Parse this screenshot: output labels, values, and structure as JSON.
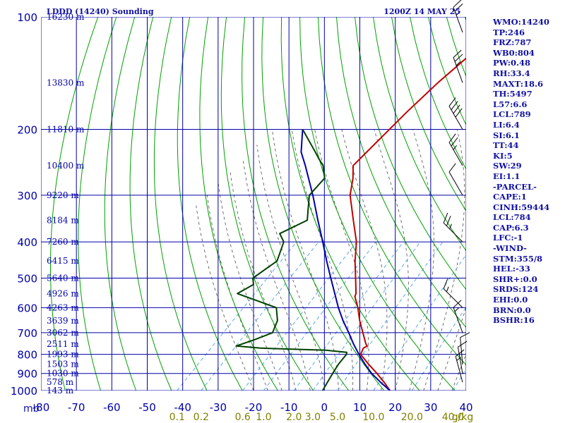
{
  "chart_data": {
    "type": "line",
    "chart_kind": "skew-T log-P sounding",
    "title": "LDDD (14240) Sounding",
    "time_label": "1200Z 14 MAY 25",
    "y_axis": {
      "scale": "log",
      "units_label": "mb",
      "range": [
        1000,
        100
      ],
      "ticks": [
        100,
        200,
        300,
        400,
        500,
        600,
        700,
        800,
        900,
        1000
      ]
    },
    "x_axis": {
      "units": "°C",
      "range": [
        -80,
        40
      ],
      "ticks": [
        -80,
        -70,
        -60,
        -50,
        -40,
        -30,
        -20,
        -10,
        0,
        10,
        20,
        30,
        40
      ],
      "tick_labels": [
        "-80",
        "-70",
        "-60",
        "-50",
        "-40",
        "-30",
        "-20",
        "-10",
        "0",
        "10",
        "20",
        "30",
        "40"
      ]
    },
    "mixing_ratio_labels": {
      "values": [
        "0.1",
        "0.2",
        "0.6",
        "1.0",
        "2.0",
        "3.0",
        "5.0",
        "10.0",
        "20.0",
        "40.0"
      ],
      "unit": "g/kg"
    },
    "height_labels": [
      {
        "p": 100,
        "label": "16230 m"
      },
      {
        "p": 150,
        "label": "13830 m"
      },
      {
        "p": 200,
        "label": "11810 m"
      },
      {
        "p": 250,
        "label": "10400 m"
      },
      {
        "p": 300,
        "label": "9220 m"
      },
      {
        "p": 350,
        "label": "8184 m"
      },
      {
        "p": 400,
        "label": "7260 m"
      },
      {
        "p": 450,
        "label": "6415 m"
      },
      {
        "p": 500,
        "label": "5640 m"
      },
      {
        "p": 550,
        "label": "4926 m"
      },
      {
        "p": 600,
        "label": "4263 m"
      },
      {
        "p": 650,
        "label": "3639 m"
      },
      {
        "p": 700,
        "label": "3062 m"
      },
      {
        "p": 750,
        "label": "2511 m"
      },
      {
        "p": 800,
        "label": "1993 m"
      },
      {
        "p": 850,
        "label": "1503 m"
      },
      {
        "p": 900,
        "label": "1030 m"
      },
      {
        "p": 950,
        "label": "578 m"
      },
      {
        "p": 1000,
        "label": "143 m"
      }
    ],
    "series": [
      {
        "color": "#c00000",
        "points": [
          [
            1000,
            18.5
          ],
          [
            950,
            14.5
          ],
          [
            900,
            10
          ],
          [
            850,
            5
          ],
          [
            800,
            0
          ],
          [
            770,
            -1
          ],
          [
            760,
            -0.5
          ],
          [
            750,
            -1.5
          ],
          [
            700,
            -5.5
          ],
          [
            650,
            -9.8
          ],
          [
            600,
            -14
          ],
          [
            560,
            -18
          ],
          [
            550,
            -18.5
          ],
          [
            500,
            -23
          ],
          [
            450,
            -28
          ],
          [
            400,
            -33
          ],
          [
            350,
            -40
          ],
          [
            300,
            -48
          ],
          [
            270,
            -52
          ],
          [
            250,
            -55.5
          ],
          [
            240,
            -55.5
          ],
          [
            210,
            -55.5
          ],
          [
            180,
            -55.5
          ],
          [
            150,
            -55
          ],
          [
            130,
            -54
          ],
          [
            117,
            -53.5
          ],
          [
            109,
            -52.5
          ],
          [
            100,
            -51.5
          ]
        ]
      },
      {
        "color": "#0000aa",
        "points": [
          [
            1000,
            18.5
          ],
          [
            950,
            13.5
          ],
          [
            900,
            8.5
          ],
          [
            850,
            4
          ],
          [
            800,
            -0.5
          ],
          [
            750,
            -5
          ],
          [
            700,
            -9.5
          ],
          [
            650,
            -14.5
          ],
          [
            600,
            -19.5
          ],
          [
            550,
            -24.5
          ],
          [
            500,
            -30
          ],
          [
            450,
            -36
          ],
          [
            400,
            -42.5
          ],
          [
            350,
            -50
          ],
          [
            300,
            -58.5
          ],
          [
            250,
            -69
          ],
          [
            230,
            -74
          ],
          [
            200,
            -80
          ]
        ]
      },
      {
        "color": "#004000",
        "points": [
          [
            1000,
            -0.5
          ],
          [
            950,
            -1.5
          ],
          [
            900,
            -2.5
          ],
          [
            850,
            -3.5
          ],
          [
            800,
            -4
          ],
          [
            790,
            -4.5
          ],
          [
            780,
            -11
          ],
          [
            770,
            -30
          ],
          [
            760,
            -37.5
          ],
          [
            730,
            -34
          ],
          [
            700,
            -31
          ],
          [
            650,
            -33
          ],
          [
            600,
            -37
          ],
          [
            550,
            -52
          ],
          [
            520,
            -50
          ],
          [
            500,
            -52
          ],
          [
            450,
            -50
          ],
          [
            400,
            -53.5
          ],
          [
            380,
            -57
          ],
          [
            350,
            -53
          ],
          [
            330,
            -55.5
          ],
          [
            300,
            -59.5
          ],
          [
            270,
            -60
          ],
          [
            250,
            -64
          ],
          [
            240,
            -67
          ],
          [
            230,
            -70
          ],
          [
            200,
            -80
          ]
        ]
      }
    ],
    "wind_barbs": [
      {
        "p": 110,
        "dir": 340,
        "kt": 25
      },
      {
        "p": 150,
        "dir": 340,
        "kt": 25
      },
      {
        "p": 200,
        "dir": 330,
        "kt": 40
      },
      {
        "p": 250,
        "dir": 330,
        "kt": 25
      },
      {
        "p": 300,
        "dir": 330,
        "kt": 10
      },
      {
        "p": 400,
        "dir": 315,
        "kt": 25
      },
      {
        "p": 600,
        "dir": 315,
        "kt": 15
      },
      {
        "p": 700,
        "dir": 340,
        "kt": 15
      },
      {
        "p": 850,
        "dir": 355,
        "kt": 10
      },
      {
        "p": 900,
        "dir": 350,
        "kt": 10
      },
      {
        "p": 950,
        "dir": 345,
        "kt": 15
      }
    ]
  },
  "stats": [
    "WMO:14240",
    "TP:246",
    "FRZ:787",
    "WB0:804",
    "PW:0.48",
    "RH:33.4",
    "MAXT:18.6",
    "TH:5497",
    "L57:6.6",
    "LCL:789",
    "LI:6.4",
    "SI:6.1",
    "TT:44",
    "KI:5",
    "SW:29",
    "EI:1.1",
    "-PARCEL-",
    "CAPE:1",
    "CINH:59444",
    "LCL:784",
    "CAP:6.3",
    "LFC:-1",
    "-WIND-",
    "STM:355/8",
    "HEL:-33",
    "SHR+:0.0",
    "SRDS:124",
    "EHI:0.0",
    "BRN:0.0",
    "BSHR:16"
  ],
  "colors": {
    "background": "#ffffff",
    "grid": "#0000aa",
    "dry_adiabat": "#00a000",
    "mixing_ratio": "#5aa8e8",
    "moist_adiabat": "#606060",
    "text": "#1010a0",
    "mr_text": "#808000"
  }
}
